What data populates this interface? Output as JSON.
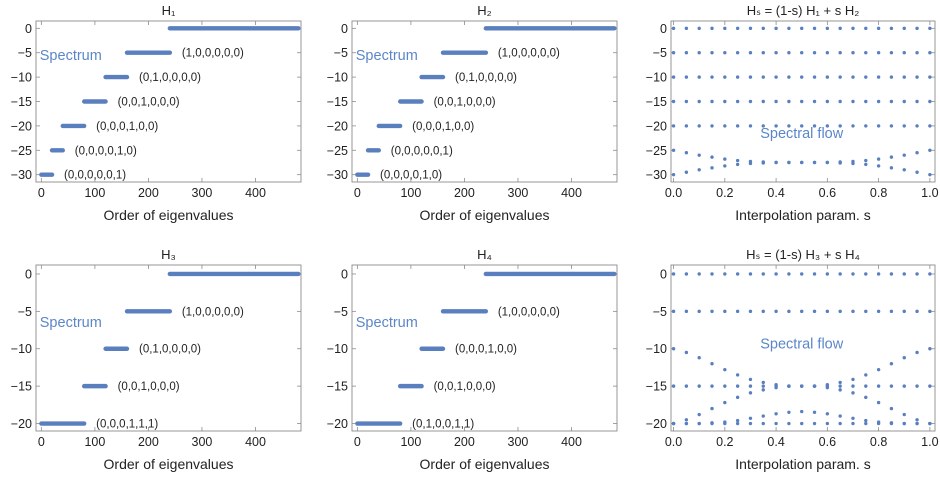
{
  "colors": {
    "series": "#5a7fbf",
    "annotation": "#5b86c8",
    "axis": "#8c8c8c",
    "text": "#222222"
  },
  "chart_data": [
    {
      "type": "scatter",
      "title": "H₁",
      "xlabel": "Order of eigenvalues",
      "ylabel": "",
      "xlim": [
        -10,
        485
      ],
      "ylim": [
        -31.5,
        1.5
      ],
      "xticks": [
        0,
        100,
        200,
        300,
        400
      ],
      "yticks": [
        0,
        -5,
        -10,
        -15,
        -20,
        -25,
        -30
      ],
      "xtick_labels": [
        "0",
        "100",
        "200",
        "300",
        "400"
      ],
      "ytick_labels": [
        "0",
        "−5",
        "−10",
        "−15",
        "−20",
        "−25",
        "−30"
      ],
      "grid": false,
      "segments": [
        {
          "y": 0,
          "x": [
            240,
            480
          ]
        },
        {
          "y": -5,
          "x": [
            160,
            240
          ],
          "label": "(1,0,0,0,0,0)"
        },
        {
          "y": -10,
          "x": [
            120,
            160
          ],
          "label": "(0,1,0,0,0,0)"
        },
        {
          "y": -15,
          "x": [
            80,
            120
          ],
          "label": "(0,0,1,0,0,0)"
        },
        {
          "y": -20,
          "x": [
            40,
            80
          ],
          "label": "(0,0,0,1,0,0)"
        },
        {
          "y": -25,
          "x": [
            20,
            40
          ],
          "label": "(0,0,0,0,1,0)"
        },
        {
          "y": -30,
          "x": [
            0,
            20
          ],
          "label": "(0,0,0,0,0,1)"
        }
      ],
      "annotation": {
        "text": "Spectrum",
        "at": [
          55,
          -6.5
        ]
      }
    },
    {
      "type": "scatter",
      "title": "H₂",
      "xlabel": "Order of eigenvalues",
      "ylabel": "",
      "xlim": [
        -10,
        485
      ],
      "ylim": [
        -31.5,
        1.5
      ],
      "xticks": [
        0,
        100,
        200,
        300,
        400
      ],
      "yticks": [
        0,
        -5,
        -10,
        -15,
        -20,
        -25,
        -30
      ],
      "xtick_labels": [
        "0",
        "100",
        "200",
        "300",
        "400"
      ],
      "ytick_labels": [
        "0",
        "−5",
        "−10",
        "−15",
        "−20",
        "−25",
        "−30"
      ],
      "grid": false,
      "segments": [
        {
          "y": 0,
          "x": [
            240,
            480
          ]
        },
        {
          "y": -5,
          "x": [
            160,
            240
          ],
          "label": "(1,0,0,0,0,0)"
        },
        {
          "y": -10,
          "x": [
            120,
            160
          ],
          "label": "(0,1,0,0,0,0)"
        },
        {
          "y": -15,
          "x": [
            80,
            120
          ],
          "label": "(0,0,1,0,0,0)"
        },
        {
          "y": -20,
          "x": [
            40,
            80
          ],
          "label": "(0,0,0,1,0,0)"
        },
        {
          "y": -25,
          "x": [
            20,
            40
          ],
          "label": "(0,0,0,0,0,1)"
        },
        {
          "y": -30,
          "x": [
            0,
            20
          ],
          "label": "(0,0,0,0,1,0)"
        }
      ],
      "annotation": {
        "text": "Spectrum",
        "at": [
          55,
          -6.5
        ]
      }
    },
    {
      "type": "scatter",
      "title": "Hₛ = (1-s) H₁ + s H₂",
      "xlabel": "Interpolation param. s",
      "ylabel": "",
      "xlim": [
        -0.01,
        1.02
      ],
      "ylim": [
        -31.5,
        1.5
      ],
      "xticks": [
        0.0,
        0.2,
        0.4,
        0.6,
        0.8,
        1.0
      ],
      "yticks": [
        0,
        -5,
        -10,
        -15,
        -20,
        -25,
        -30
      ],
      "xtick_labels": [
        "0.0",
        "0.2",
        "0.4",
        "0.6",
        "0.8",
        "1.0"
      ],
      "ytick_labels": [
        "0",
        "−5",
        "−10",
        "−15",
        "−20",
        "−25",
        "−30"
      ],
      "grid": false,
      "s_values": [
        0,
        0.05,
        0.1,
        0.15,
        0.2,
        0.25,
        0.3,
        0.35,
        0.4,
        0.45,
        0.5,
        0.55,
        0.6,
        0.65,
        0.7,
        0.75,
        0.8,
        0.85,
        0.9,
        0.95,
        1.0
      ],
      "constant_levels": [
        0,
        -5,
        -10,
        -15,
        -20
      ],
      "curves": [
        [
          -25,
          -25.5,
          -26,
          -26.4,
          -26.8,
          -27.1,
          -27.3,
          -27.4,
          -27.5,
          -27.5,
          -27.5,
          -27.5,
          -27.5,
          -27.4,
          -27.3,
          -27.1,
          -26.8,
          -26.4,
          -26,
          -25.5,
          -25
        ],
        [
          -30,
          -29.5,
          -29,
          -28.6,
          -28.2,
          -27.9,
          -27.7,
          -27.6,
          -27.5,
          -27.5,
          -27.5,
          -27.5,
          -27.5,
          -27.6,
          -27.7,
          -27.9,
          -28.2,
          -28.6,
          -29,
          -29.5,
          -30
        ]
      ],
      "annotation": {
        "text": "Spectral flow",
        "at": [
          0.5,
          -22.5
        ]
      }
    },
    {
      "type": "scatter",
      "title": "H₃",
      "xlabel": "Order of eigenvalues",
      "ylabel": "",
      "xlim": [
        -10,
        485
      ],
      "ylim": [
        -21,
        1.2
      ],
      "xticks": [
        0,
        100,
        200,
        300,
        400
      ],
      "yticks": [
        0,
        -5,
        -10,
        -15,
        -20
      ],
      "xtick_labels": [
        "0",
        "100",
        "200",
        "300",
        "400"
      ],
      "ytick_labels": [
        "0",
        "−5",
        "−10",
        "−15",
        "−20"
      ],
      "grid": false,
      "segments": [
        {
          "y": 0,
          "x": [
            240,
            480
          ]
        },
        {
          "y": -5,
          "x": [
            160,
            240
          ],
          "label": "(1,0,0,0,0,0)"
        },
        {
          "y": -10,
          "x": [
            120,
            160
          ],
          "label": "(0,1,0,0,0,0)"
        },
        {
          "y": -15,
          "x": [
            80,
            120
          ],
          "label": "(0,0,1,0,0,0)"
        },
        {
          "y": -20,
          "x": [
            0,
            80
          ],
          "label": "(0,0,0,1,1,1)"
        }
      ],
      "annotation": {
        "text": "Spectrum",
        "at": [
          55,
          -7.1
        ]
      }
    },
    {
      "type": "scatter",
      "title": "H₄",
      "xlabel": "Order of eigenvalues",
      "ylabel": "",
      "xlim": [
        -10,
        485
      ],
      "ylim": [
        -21,
        1.2
      ],
      "xticks": [
        0,
        100,
        200,
        300,
        400
      ],
      "yticks": [
        0,
        -5,
        -10,
        -15,
        -20
      ],
      "xtick_labels": [
        "0",
        "100",
        "200",
        "300",
        "400"
      ],
      "ytick_labels": [
        "0",
        "−5",
        "−10",
        "−15",
        "−20"
      ],
      "grid": false,
      "segments": [
        {
          "y": 0,
          "x": [
            240,
            480
          ]
        },
        {
          "y": -5,
          "x": [
            160,
            240
          ],
          "label": "(1,0,0,0,0,0)"
        },
        {
          "y": -10,
          "x": [
            120,
            160
          ],
          "label": "(0,0,0,1,0,0)"
        },
        {
          "y": -15,
          "x": [
            80,
            120
          ],
          "label": "(0,0,1,0,0,0)"
        },
        {
          "y": -20,
          "x": [
            0,
            80
          ],
          "label": "(0,1,0,0,1,1)"
        }
      ],
      "annotation": {
        "text": "Spectrum",
        "at": [
          55,
          -7.1
        ]
      }
    },
    {
      "type": "scatter",
      "title": "Hₛ = (1-s) H₃ + s H₄",
      "xlabel": "Interpolation param. s",
      "ylabel": "",
      "xlim": [
        -0.01,
        1.02
      ],
      "ylim": [
        -21,
        1.2
      ],
      "xticks": [
        0.0,
        0.2,
        0.4,
        0.6,
        0.8,
        1.0
      ],
      "yticks": [
        0,
        -5,
        -10,
        -15,
        -20
      ],
      "xtick_labels": [
        "0.0",
        "0.2",
        "0.4",
        "0.6",
        "0.8",
        "1.0"
      ],
      "ytick_labels": [
        "0",
        "−5",
        "−10",
        "−15",
        "−20"
      ],
      "grid": false,
      "s_values": [
        0,
        0.05,
        0.1,
        0.15,
        0.2,
        0.25,
        0.3,
        0.35,
        0.4,
        0.45,
        0.5,
        0.55,
        0.6,
        0.65,
        0.7,
        0.75,
        0.8,
        0.85,
        0.9,
        0.95,
        1.0
      ],
      "constant_levels": [
        0,
        -5,
        -15,
        -20
      ],
      "curves": [
        [
          -10,
          -10.5,
          -11.2,
          -12,
          -12.8,
          -13.5,
          -14.1,
          -14.5,
          -14.8,
          -15,
          -15,
          -15,
          -14.8,
          -14.5,
          -14.1,
          -13.5,
          -12.8,
          -12,
          -11.2,
          -10.5,
          -10
        ],
        [
          -20,
          -19.5,
          -18.8,
          -18,
          -17.2,
          -16.5,
          -15.9,
          -15.5,
          -15.2,
          -15,
          -15,
          -15,
          -15.2,
          -15.5,
          -15.9,
          -16.5,
          -17.2,
          -18,
          -18.8,
          -19.5,
          -20
        ],
        [
          -20,
          -20,
          -20,
          -19.9,
          -19.8,
          -19.6,
          -19.3,
          -19,
          -18.7,
          -18.5,
          -18.4,
          -18.5,
          -18.7,
          -19,
          -19.3,
          -19.6,
          -19.8,
          -19.9,
          -20,
          -20,
          -20
        ]
      ],
      "annotation": {
        "text": "Spectral flow",
        "at": [
          0.5,
          -10
        ]
      }
    }
  ]
}
